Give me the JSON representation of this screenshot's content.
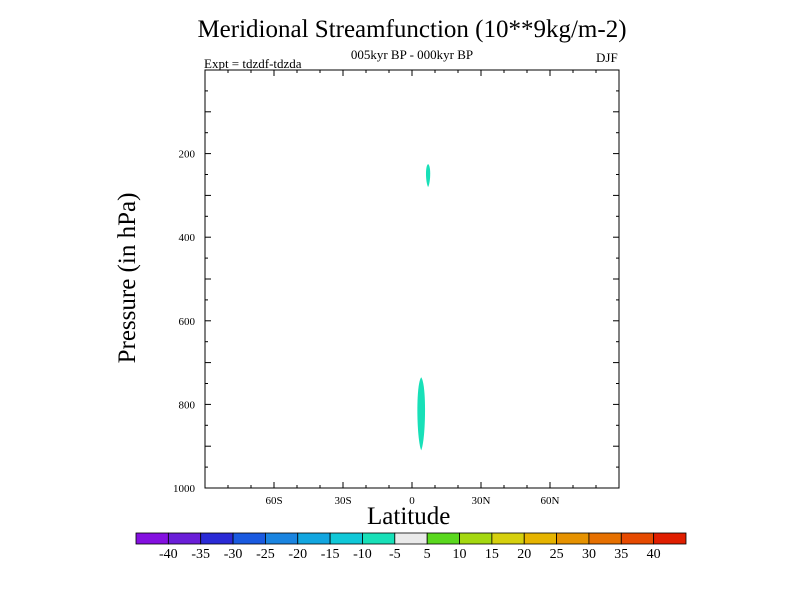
{
  "chart_data": {
    "type": "contour",
    "title": "Meridional Streamfunction (10**9kg/m-2)",
    "subtitle": "005kyr BP - 000kyr BP",
    "left_label": "Expt = tdzdf-tdzda",
    "right_label": "DJF",
    "xlabel": "Latitude",
    "ylabel": "Pressure (in hPa)",
    "xlim": [
      -90,
      90
    ],
    "ylim": [
      1000,
      0
    ],
    "x_ticks": [
      {
        "value": -60,
        "label": "60S"
      },
      {
        "value": -30,
        "label": "30S"
      },
      {
        "value": 0,
        "label": "0"
      },
      {
        "value": 30,
        "label": "30N"
      },
      {
        "value": 60,
        "label": "60N"
      }
    ],
    "y_ticks": [
      {
        "value": 200,
        "label": "200"
      },
      {
        "value": 400,
        "label": "400"
      },
      {
        "value": 600,
        "label": "600"
      },
      {
        "value": 800,
        "label": "800"
      },
      {
        "value": 1000,
        "label": "1000"
      }
    ],
    "filled_regions": [
      {
        "name": "upper-patch",
        "level": "-10 to -5",
        "lat_range": [
          6,
          8
        ],
        "pressure_range": [
          225,
          280
        ]
      },
      {
        "name": "lower-patch",
        "level": "-10 to -5",
        "lat_range": [
          2,
          6
        ],
        "pressure_range": [
          735,
          910
        ]
      }
    ],
    "colorbar": {
      "labels": [
        "-40",
        "-35",
        "-30",
        "-25",
        "-20",
        "-15",
        "-10",
        "-5",
        "5",
        "10",
        "15",
        "20",
        "25",
        "30",
        "35",
        "40"
      ],
      "colors": [
        "#8410e0",
        "#6a1ed8",
        "#2a2ad6",
        "#1a5ae0",
        "#1a84e0",
        "#12a6e0",
        "#10c8d8",
        "#18e0b8",
        "#eaeaea",
        "#5ad81e",
        "#a4d810",
        "#d6d00e",
        "#e6b400",
        "#e69200",
        "#e67000",
        "#e64a00",
        "#e01e00"
      ]
    }
  }
}
